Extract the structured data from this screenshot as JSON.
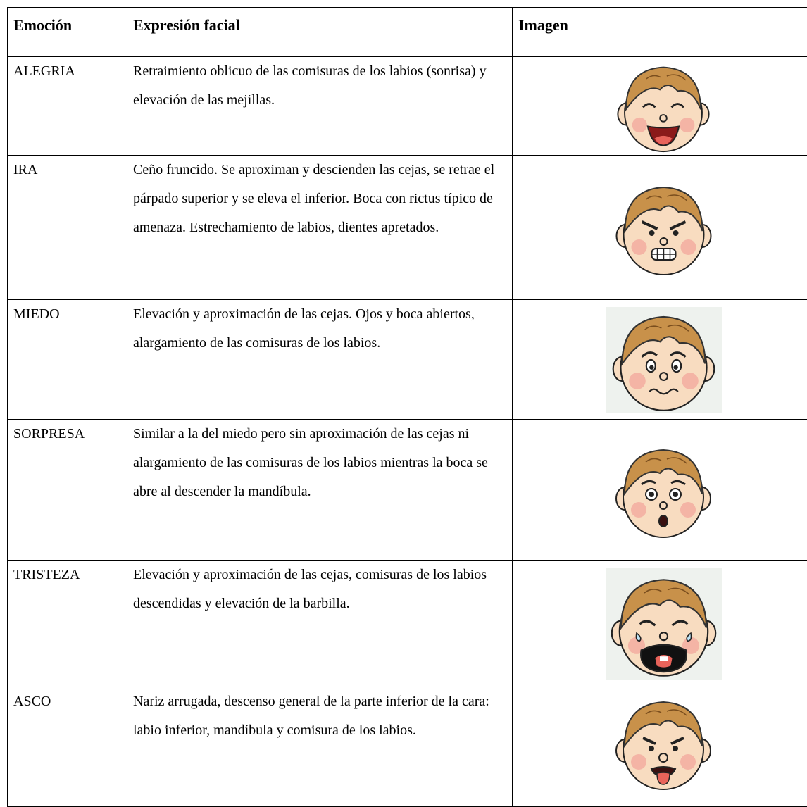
{
  "table": {
    "header": [
      "Emoción",
      "Expresión facial",
      "Imagen"
    ],
    "rows": [
      [
        "ALEGRIA",
        "Retraimiento oblicuo de las comisuras de los labios (sonrisa) y elevación de las mejillas."
      ],
      [
        "IRA",
        "Ceño fruncido. Se aproximan y descienden las cejas, se retrae el párpado superior y se eleva el inferior. Boca con rictus típico de amenaza. Estrechamiento de labios, dientes apretados."
      ],
      [
        "MIEDO",
        "Elevación y aproximación de las cejas. Ojos y boca abiertos, alargamiento de las comisuras de los labios."
      ],
      [
        "SORPRESA",
        "Similar a la del miedo pero sin aproximación de las cejas ni alargamiento de las comisuras de los labios mientras la boca se abre al descender la mandíbula."
      ],
      [
        "TRISTEZA",
        "Elevación y aproximación de las cejas, comisuras de los labios descendidas y elevación de la barbilla."
      ],
      [
        "ASCO",
        "Nariz arrugada, descenso general de la parte inferior de la cara: labio inferior, mandíbula y comisura de los labios."
      ]
    ]
  }
}
